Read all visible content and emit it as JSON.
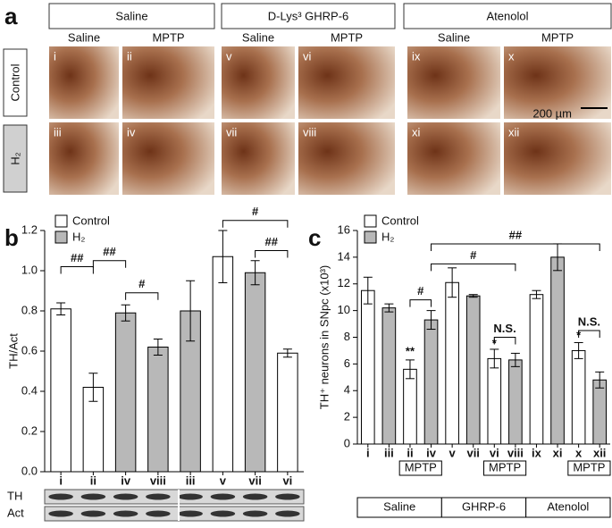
{
  "panel_a": {
    "label": "a",
    "groups": [
      "Saline",
      "D-Lys³ GHRP-6",
      "Atenolol"
    ],
    "treatments": [
      "Saline",
      "MPTP",
      "Saline",
      "MPTP",
      "Saline",
      "MPTP"
    ],
    "rows": [
      "Control",
      "H₂"
    ],
    "images": [
      [
        "i",
        "ii",
        "v",
        "vi",
        "ix",
        "x"
      ],
      [
        "iii",
        "iv",
        "vii",
        "viii",
        "xi",
        "xii"
      ]
    ],
    "scale_bar": "200 µm"
  },
  "chart_data": [
    {
      "type": "bar",
      "label": "b",
      "ylabel": "TH/Act",
      "categories": [
        "i",
        "ii",
        "iv",
        "viii",
        "iii",
        "v",
        "vii",
        "vi"
      ],
      "series": [
        {
          "name": "Control",
          "color": "#ffffff",
          "values": [
            0.81,
            0.42,
            null,
            null,
            null,
            1.07,
            null,
            0.59
          ],
          "errors": [
            0.03,
            0.07,
            null,
            null,
            null,
            0.13,
            null,
            0.02
          ]
        },
        {
          "name": "H₂",
          "color": "#b8b8b8",
          "values": [
            null,
            null,
            0.79,
            0.62,
            0.8,
            null,
            0.99,
            null
          ],
          "errors": [
            null,
            null,
            0.04,
            0.04,
            0.15,
            null,
            0.06,
            null
          ]
        }
      ],
      "ylim": [
        0,
        1.2
      ],
      "yticks": [
        {
          "value": 0,
          "label": "0.0"
        },
        0.2,
        0.4,
        0.6,
        0.8,
        {
          "value": 1,
          "label": "1.0"
        },
        1.2
      ],
      "annotations": [
        "##",
        "##",
        "#",
        "#",
        "##"
      ],
      "blot_labels": [
        "TH",
        "Act"
      ]
    },
    {
      "type": "bar",
      "label": "c",
      "ylabel": "TH⁺ neurons in SNpc (x10³)",
      "categories": [
        "i",
        "iii",
        "ii",
        "iv",
        "v",
        "vii",
        "vi",
        "viii",
        "ix",
        "xi",
        "x",
        "xii"
      ],
      "series": [
        {
          "name": "Control",
          "color": "#ffffff",
          "values": [
            11.5,
            null,
            5.6,
            null,
            12.1,
            null,
            6.4,
            null,
            11.2,
            null,
            7.0,
            null
          ],
          "errors": [
            1.0,
            null,
            0.7,
            null,
            1.1,
            null,
            0.7,
            null,
            0.3,
            null,
            0.6,
            null
          ]
        },
        {
          "name": "H₂",
          "color": "#b8b8b8",
          "values": [
            null,
            10.2,
            null,
            9.3,
            null,
            11.1,
            null,
            6.3,
            null,
            14.0,
            null,
            4.8
          ],
          "errors": [
            null,
            0.3,
            null,
            0.7,
            null,
            0.1,
            null,
            0.5,
            null,
            1.0,
            null,
            0.6
          ]
        }
      ],
      "ylim": [
        0,
        16
      ],
      "yticks": [
        0,
        2,
        4,
        6,
        8,
        10,
        12,
        14,
        16
      ],
      "annotations": [
        "**",
        "*",
        "*",
        "#",
        "N.S.",
        "N.S.",
        "#",
        "##"
      ],
      "treatment_labels": [
        "MPTP",
        "MPTP",
        "MPTP"
      ],
      "groups": [
        "Saline",
        "GHRP-6",
        "Atenolol"
      ]
    }
  ]
}
